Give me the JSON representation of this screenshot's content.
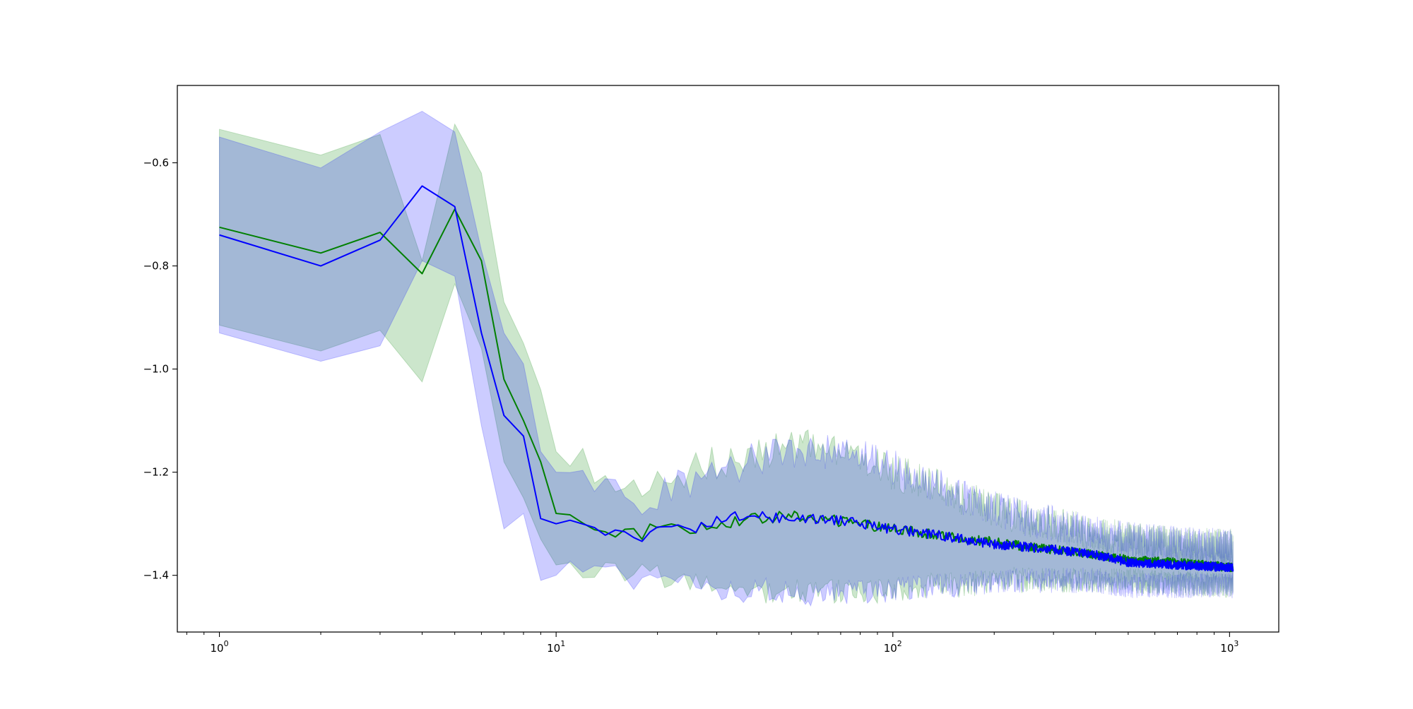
{
  "chart_data": {
    "type": "line",
    "title": "",
    "xlabel": "",
    "ylabel": "",
    "x_scale": "log",
    "xlim": [
      0.75,
      1400
    ],
    "ylim": [
      -1.51,
      -0.45
    ],
    "x_ticks": [
      {
        "value": 1,
        "base": "10",
        "exp": "0"
      },
      {
        "value": 10,
        "base": "10",
        "exp": "1"
      },
      {
        "value": 100,
        "base": "10",
        "exp": "2"
      },
      {
        "value": 1000,
        "base": "10",
        "exp": "3"
      }
    ],
    "y_ticks": [
      {
        "value": -1.4,
        "label": "−1.4"
      },
      {
        "value": -1.2,
        "label": "−1.2"
      },
      {
        "value": -1.0,
        "label": "−1.0"
      },
      {
        "value": -0.8,
        "label": "−0.8"
      },
      {
        "value": -0.6,
        "label": "−0.6"
      }
    ],
    "grid": false,
    "legend": "none",
    "x_max": 1024,
    "series": [
      {
        "color": "#008000",
        "band_color": "#008000",
        "anchor_x": [
          1,
          2,
          3,
          4,
          5,
          6,
          7,
          8,
          9,
          10,
          12,
          14,
          16,
          18,
          20,
          25,
          30,
          40,
          50,
          60,
          80,
          100,
          130,
          160,
          200,
          250,
          300,
          400,
          500,
          700,
          1024
        ],
        "mean": [
          -0.725,
          -0.775,
          -0.735,
          -0.815,
          -0.69,
          -0.79,
          -1.02,
          -1.1,
          -1.18,
          -1.28,
          -1.295,
          -1.315,
          -1.315,
          -1.32,
          -1.3,
          -1.31,
          -1.3,
          -1.29,
          -1.285,
          -1.29,
          -1.3,
          -1.31,
          -1.32,
          -1.33,
          -1.335,
          -1.345,
          -1.35,
          -1.36,
          -1.37,
          -1.375,
          -1.385
        ],
        "upper": [
          -0.535,
          -0.585,
          -0.545,
          -0.79,
          -0.525,
          -0.62,
          -0.87,
          -0.95,
          -1.04,
          -1.16,
          -1.175,
          -1.22,
          -1.245,
          -1.245,
          -1.22,
          -1.2,
          -1.18,
          -1.16,
          -1.15,
          -1.155,
          -1.17,
          -1.2,
          -1.22,
          -1.25,
          -1.27,
          -1.29,
          -1.3,
          -1.32,
          -1.33,
          -1.34,
          -1.345
        ],
        "lower": [
          -0.915,
          -0.965,
          -0.925,
          -1.025,
          -0.835,
          -0.96,
          -1.18,
          -1.25,
          -1.33,
          -1.38,
          -1.395,
          -1.39,
          -1.39,
          -1.39,
          -1.4,
          -1.42,
          -1.43,
          -1.43,
          -1.43,
          -1.43,
          -1.43,
          -1.43,
          -1.42,
          -1.42,
          -1.41,
          -1.41,
          -1.41,
          -1.41,
          -1.41,
          -1.415,
          -1.42
        ],
        "noise": 0.012,
        "band_noise": 0.035
      },
      {
        "color": "#0000ff",
        "band_color": "#0000ff",
        "anchor_x": [
          1,
          2,
          3,
          4,
          5,
          6,
          7,
          8,
          9,
          10,
          12,
          14,
          16,
          18,
          20,
          25,
          30,
          40,
          50,
          60,
          80,
          100,
          130,
          160,
          200,
          250,
          300,
          400,
          500,
          700,
          1024
        ],
        "mean": [
          -0.74,
          -0.8,
          -0.75,
          -0.645,
          -0.685,
          -0.93,
          -1.09,
          -1.13,
          -1.29,
          -1.3,
          -1.3,
          -1.32,
          -1.32,
          -1.325,
          -1.31,
          -1.31,
          -1.29,
          -1.285,
          -1.29,
          -1.29,
          -1.3,
          -1.31,
          -1.32,
          -1.33,
          -1.34,
          -1.345,
          -1.35,
          -1.36,
          -1.375,
          -1.38,
          -1.385
        ],
        "upper": [
          -0.55,
          -0.61,
          -0.54,
          -0.5,
          -0.54,
          -0.77,
          -0.93,
          -0.99,
          -1.16,
          -1.2,
          -1.2,
          -1.23,
          -1.25,
          -1.25,
          -1.24,
          -1.22,
          -1.2,
          -1.17,
          -1.16,
          -1.16,
          -1.17,
          -1.19,
          -1.22,
          -1.25,
          -1.27,
          -1.29,
          -1.3,
          -1.32,
          -1.33,
          -1.34,
          -1.345
        ],
        "lower": [
          -0.93,
          -0.985,
          -0.955,
          -0.79,
          -0.82,
          -1.11,
          -1.31,
          -1.28,
          -1.41,
          -1.4,
          -1.39,
          -1.4,
          -1.4,
          -1.41,
          -1.4,
          -1.42,
          -1.43,
          -1.43,
          -1.43,
          -1.44,
          -1.43,
          -1.43,
          -1.42,
          -1.42,
          -1.41,
          -1.41,
          -1.41,
          -1.41,
          -1.42,
          -1.42,
          -1.42
        ],
        "noise": 0.012,
        "band_noise": 0.035
      }
    ]
  }
}
